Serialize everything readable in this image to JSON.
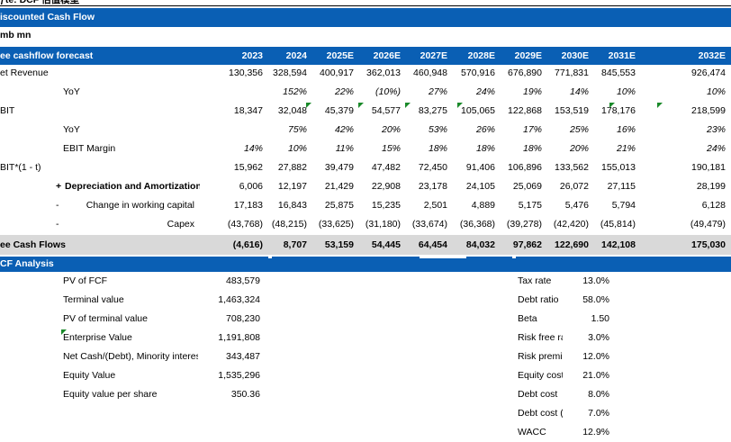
{
  "top_note": "ƒte:  DCF 估值模型",
  "title": "iscounted Cash Flow",
  "unit": "mb mn",
  "forecast": {
    "label": "ee cashflow forecast",
    "years": [
      "2023",
      "2024",
      "2025E",
      "2026E",
      "2027E",
      "2028E",
      "2029E",
      "2030E",
      "2031E",
      "2032E"
    ]
  },
  "rows": [
    {
      "label": "et Revenue",
      "values": [
        "130,356",
        "328,594",
        "400,917",
        "362,013",
        "460,948",
        "570,916",
        "676,890",
        "771,831",
        "845,553",
        "926,474"
      ]
    },
    {
      "label": "YoY",
      "values": [
        "",
        "152%",
        "22%",
        "(10%)",
        "27%",
        "24%",
        "19%",
        "14%",
        "10%",
        "10%"
      ]
    },
    {
      "label": "BIT",
      "values": [
        "18,347",
        "32,048",
        "45,379",
        "54,577",
        "83,275",
        "105,065",
        "122,868",
        "153,519",
        "178,176",
        "218,599"
      ]
    },
    {
      "label": "YoY",
      "values": [
        "",
        "75%",
        "42%",
        "20%",
        "53%",
        "26%",
        "17%",
        "25%",
        "16%",
        "23%"
      ]
    },
    {
      "label": "EBIT Margin",
      "values": [
        "14%",
        "10%",
        "11%",
        "15%",
        "18%",
        "18%",
        "18%",
        "20%",
        "21%",
        "24%"
      ]
    },
    {
      "label": "BIT*(1 - t)",
      "values": [
        "15,962",
        "27,882",
        "39,479",
        "47,482",
        "72,450",
        "91,406",
        "106,896",
        "133,562",
        "155,013",
        "190,181"
      ]
    },
    {
      "prefix": "+",
      "label": "Depreciation and Amortization",
      "values": [
        "6,006",
        "12,197",
        "21,429",
        "22,908",
        "23,178",
        "24,105",
        "25,069",
        "26,072",
        "27,115",
        "28,199"
      ]
    },
    {
      "prefix": "-",
      "label": "Change in working capital",
      "values": [
        "17,183",
        "16,843",
        "25,875",
        "15,235",
        "2,501",
        "4,889",
        "5,175",
        "5,476",
        "5,794",
        "6,128"
      ]
    },
    {
      "prefix": "-",
      "label": "Capex",
      "values": [
        "(43,768)",
        "(48,215)",
        "(33,625)",
        "(31,180)",
        "(33,674)",
        "(36,368)",
        "(39,278)",
        "(42,420)",
        "(45,814)",
        "(49,479)"
      ]
    }
  ],
  "fcf": {
    "label": "ee Cash Flows",
    "values": [
      "(4,616)",
      "8,707",
      "53,159",
      "54,445",
      "64,454",
      "84,032",
      "97,862",
      "122,690",
      "142,108",
      "175,030"
    ]
  },
  "analysis": {
    "label": "CF Analysis",
    "left": [
      {
        "label": "PV of FCF",
        "value": "483,579"
      },
      {
        "label": "Terminal value",
        "value": "1,463,324"
      },
      {
        "label": "PV of terminal value",
        "value": "708,230"
      },
      {
        "label": "Enterprise Value",
        "value": "1,191,808"
      },
      {
        "label": "Net Cash/(Debt), Minority interest",
        "value": "343,487"
      },
      {
        "label": "Equity Value",
        "value": "1,535,296"
      },
      {
        "label": "Equity value per share",
        "value": "350.36"
      }
    ],
    "right": [
      {
        "label": "Tax rate",
        "value": "13.0%"
      },
      {
        "label": "Debt ratio",
        "value": "58.0%"
      },
      {
        "label": "Beta",
        "value": "1.50"
      },
      {
        "label": "Risk free ra",
        "value": "3.0%"
      },
      {
        "label": "Risk premiu",
        "value": "12.0%"
      },
      {
        "label": "Equity cost",
        "value": "21.0%"
      },
      {
        "label": "Debt cost",
        "value": "8.0%"
      },
      {
        "label": "Debt cost (/",
        "value": "7.0%"
      },
      {
        "label": "WACC",
        "value": "12.9%"
      }
    ]
  }
}
